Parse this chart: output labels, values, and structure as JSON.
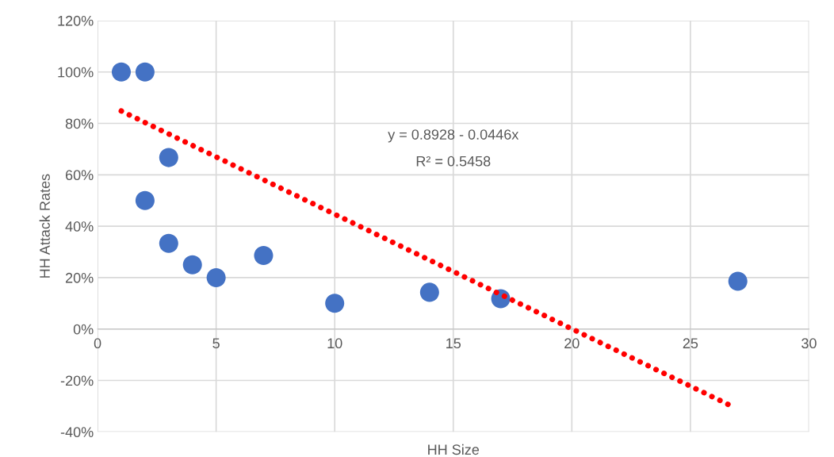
{
  "chart_data": {
    "type": "scatter",
    "xlabel": "HH Size",
    "ylabel": "HH Attack Rates",
    "xlim": [
      0,
      30
    ],
    "xticks": [
      0,
      5,
      10,
      15,
      20,
      25,
      30
    ],
    "ylim": [
      -40,
      120
    ],
    "yticks": [
      {
        "value": -40,
        "label": "-40%"
      },
      {
        "value": -20,
        "label": "-20%"
      },
      {
        "value": 0,
        "label": "0%"
      },
      {
        "value": 20,
        "label": "20%"
      },
      {
        "value": 40,
        "label": "40%"
      },
      {
        "value": 60,
        "label": "60%"
      },
      {
        "value": 80,
        "label": "80%"
      },
      {
        "value": 100,
        "label": "100%"
      },
      {
        "value": 120,
        "label": "120%"
      }
    ],
    "grid": true,
    "marker": "circle",
    "series": [
      {
        "color": "#4472c4",
        "x": [
          1,
          2,
          3,
          2,
          3,
          4,
          5,
          7,
          10,
          14,
          17,
          27
        ],
        "values": [
          100,
          100,
          66.7,
          50,
          33.3,
          25,
          20,
          28.6,
          10,
          14.3,
          11.8,
          18.6
        ]
      },
      {
        "type": "line",
        "color": "#ff0000",
        "line_style": "dotted",
        "marker": "none",
        "x": [
          1,
          26.7
        ],
        "values": [
          84.8,
          -29.8
        ]
      }
    ],
    "annotations": [
      "y = 0.8928 - 0.0446x",
      "R² = 0.5458"
    ]
  }
}
